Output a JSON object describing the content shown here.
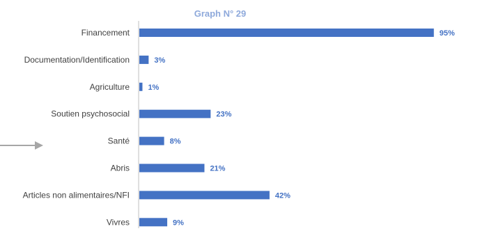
{
  "chart_data": {
    "type": "bar",
    "orientation": "horizontal",
    "title": "Graph N° 29",
    "categories": [
      "Financement",
      "Documentation/Identification",
      "Agriculture",
      "Soutien psychosocial",
      "Santé",
      "Abris",
      "Articles non alimentaires/NFI",
      "Vivres"
    ],
    "values": [
      95,
      3,
      1,
      23,
      8,
      21,
      42,
      9
    ],
    "value_labels": [
      "95%",
      "3%",
      "1%",
      "23%",
      "8%",
      "21%",
      "42%",
      "9%"
    ],
    "unit": "%",
    "xlim": [
      0,
      100
    ],
    "grid": false,
    "legend": "none",
    "annotation": "arrow pointing to Santé"
  },
  "colors": {
    "bar": "#4472C4",
    "data_label": "#4472C4",
    "title": "#8EA9DB",
    "category_label": "#404040",
    "axis": "#BFBFBF",
    "arrow": "#A6A6A6"
  }
}
